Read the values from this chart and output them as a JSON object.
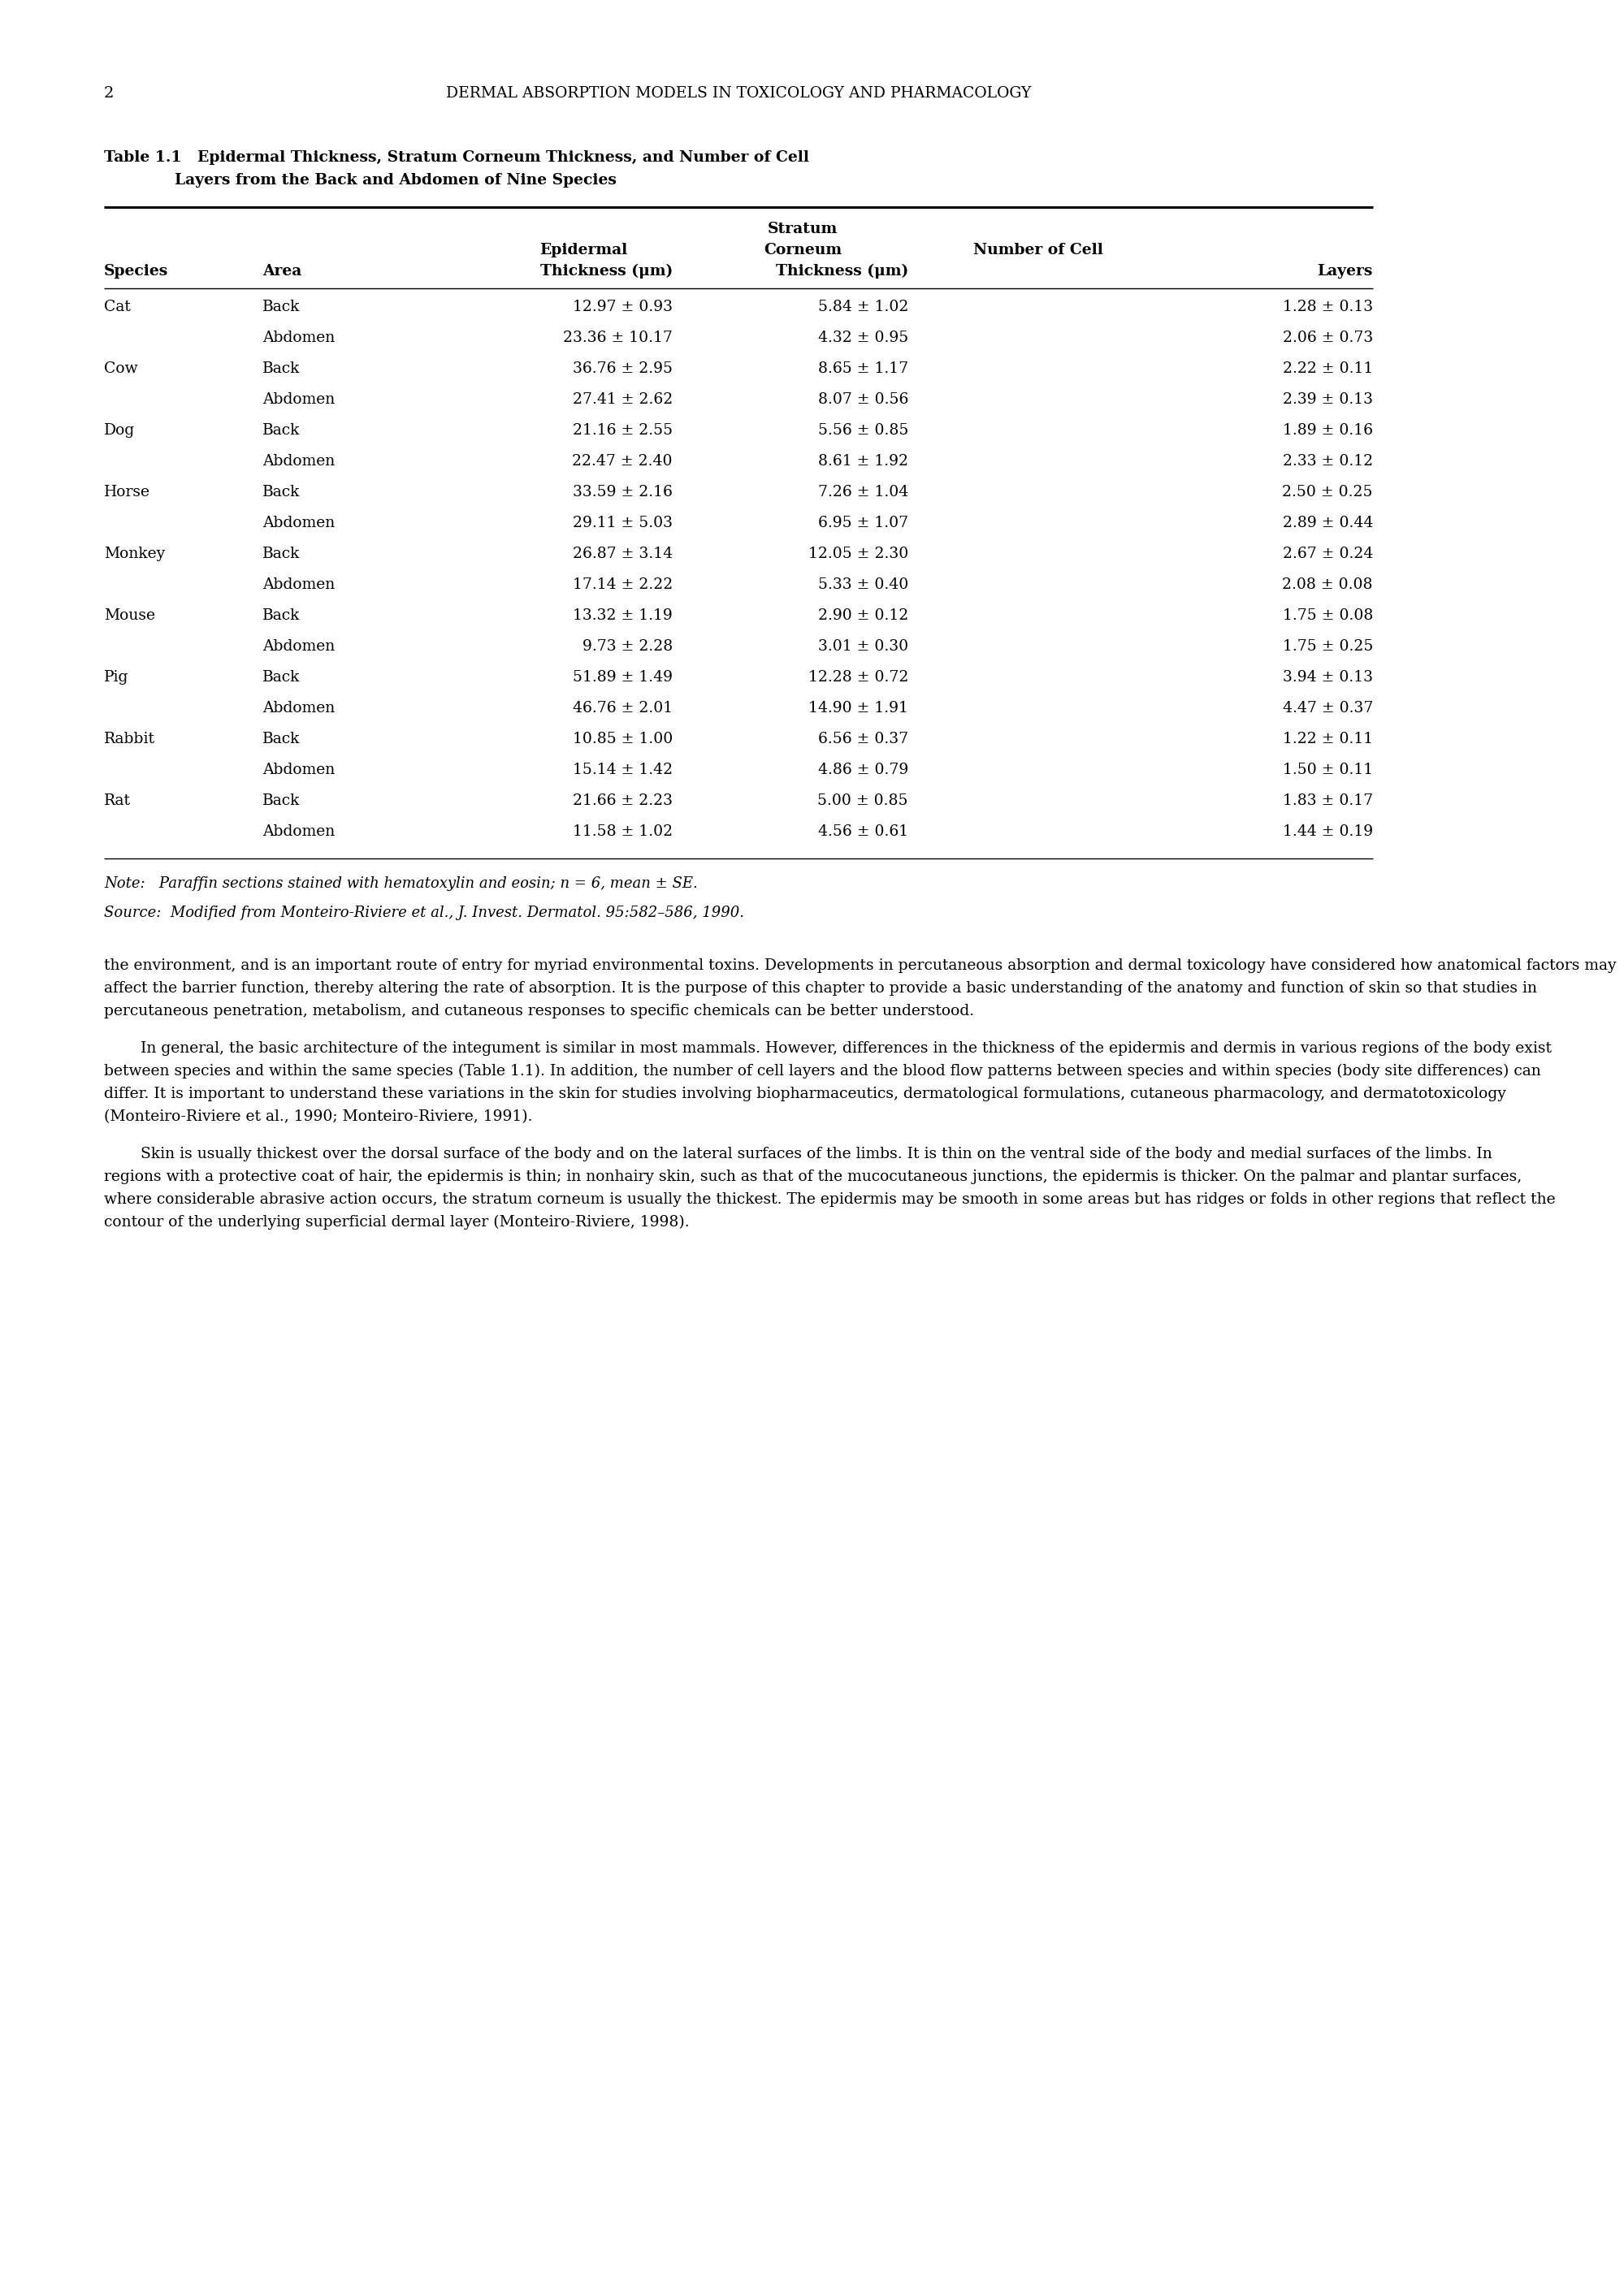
{
  "page_number": "2",
  "header_text": "DERMAL ABSORPTION MODELS IN TOXICOLOGY AND PHARMACOLOGY",
  "table_title_line1": "Table 1.1   Epidermal Thickness, Stratum Corneum Thickness, and Number of Cell",
  "table_title_line2": "Layers from the Back and Abdomen of Nine Species",
  "table_data": [
    [
      "Cat",
      "Back",
      "12.97 ± 0.93",
      "5.84 ± 1.02",
      "1.28 ± 0.13"
    ],
    [
      "",
      "Abdomen",
      "23.36 ± 10.17",
      "4.32 ± 0.95",
      "2.06 ± 0.73"
    ],
    [
      "Cow",
      "Back",
      "36.76 ± 2.95",
      "8.65 ± 1.17",
      "2.22 ± 0.11"
    ],
    [
      "",
      "Abdomen",
      "27.41 ± 2.62",
      "8.07 ± 0.56",
      "2.39 ± 0.13"
    ],
    [
      "Dog",
      "Back",
      "21.16 ± 2.55",
      "5.56 ± 0.85",
      "1.89 ± 0.16"
    ],
    [
      "",
      "Abdomen",
      "22.47 ± 2.40",
      "8.61 ± 1.92",
      "2.33 ± 0.12"
    ],
    [
      "Horse",
      "Back",
      "33.59 ± 2.16",
      "7.26 ± 1.04",
      "2.50 ± 0.25"
    ],
    [
      "",
      "Abdomen",
      "29.11 ± 5.03",
      "6.95 ± 1.07",
      "2.89 ± 0.44"
    ],
    [
      "Monkey",
      "Back",
      "26.87 ± 3.14",
      "12.05 ± 2.30",
      "2.67 ± 0.24"
    ],
    [
      "",
      "Abdomen",
      "17.14 ± 2.22",
      "5.33 ± 0.40",
      "2.08 ± 0.08"
    ],
    [
      "Mouse",
      "Back",
      "13.32 ± 1.19",
      "2.90 ± 0.12",
      "1.75 ± 0.08"
    ],
    [
      "",
      "Abdomen",
      "9.73 ± 2.28",
      "3.01 ± 0.30",
      "1.75 ± 0.25"
    ],
    [
      "Pig",
      "Back",
      "51.89 ± 1.49",
      "12.28 ± 0.72",
      "3.94 ± 0.13"
    ],
    [
      "",
      "Abdomen",
      "46.76 ± 2.01",
      "14.90 ± 1.91",
      "4.47 ± 0.37"
    ],
    [
      "Rabbit",
      "Back",
      "10.85 ± 1.00",
      "6.56 ± 0.37",
      "1.22 ± 0.11"
    ],
    [
      "",
      "Abdomen",
      "15.14 ± 1.42",
      "4.86 ± 0.79",
      "1.50 ± 0.11"
    ],
    [
      "Rat",
      "Back",
      "21.66 ± 2.23",
      "5.00 ± 0.85",
      "1.83 ± 0.17"
    ],
    [
      "",
      "Abdomen",
      "11.58 ± 1.02",
      "4.56 ± 0.61",
      "1.44 ± 0.19"
    ]
  ],
  "note_text": "Note:   Paraffin sections stained with hematoxylin and eosin; n = 6, mean ± SE.",
  "source_text": "Source:  Modified from Monteiro-Riviere et al., J. Invest. Dermatol. 95:582–586, 1990.",
  "body_paragraphs": [
    "the environment, and is an important route of entry for myriad environmental toxins. Developments in percutaneous absorption and dermal toxicology have considered how anatomical factors may affect the barrier function, thereby altering the rate of absorption. It is the purpose of this chapter to provide a basic understanding of the anatomy and function of skin so that studies in percutaneous penetration, metabolism, and cutaneous responses to specific chemicals can be better understood.",
    "In general, the basic architecture of the integument is similar in most mammals. However, differences in the thickness of the epidermis and dermis in various regions of the body exist between species and within the same species (Table 1.1). In addition, the number of cell layers and the blood flow patterns between species and within species (body site differences) can differ. It is important to understand these variations in the skin for studies involving biopharmaceutics, dermatological formulations, cutaneous pharmacology, and dermatotoxicology (Monteiro-Riviere et al., 1990; Monteiro-Riviere, 1991).",
    "Skin is usually thickest over the dorsal surface of the body and on the lateral surfaces of the limbs. It is thin on the ventral side of the body and medial surfaces of the limbs. In regions with a protective coat of hair, the epidermis is thin; in nonhairy skin, such as that of the mucocutaneous junctions, the epidermis is thicker. On the palmar and plantar surfaces, where considerable abrasive action occurs, the stratum corneum is usually the thickest. The epidermis may be smooth in some areas but has ridges or folds in other regions that reflect the contour of the underlying superficial dermal layer (Monteiro-Riviere, 1998)."
  ],
  "background_color": "#ffffff",
  "text_color": "#000000"
}
